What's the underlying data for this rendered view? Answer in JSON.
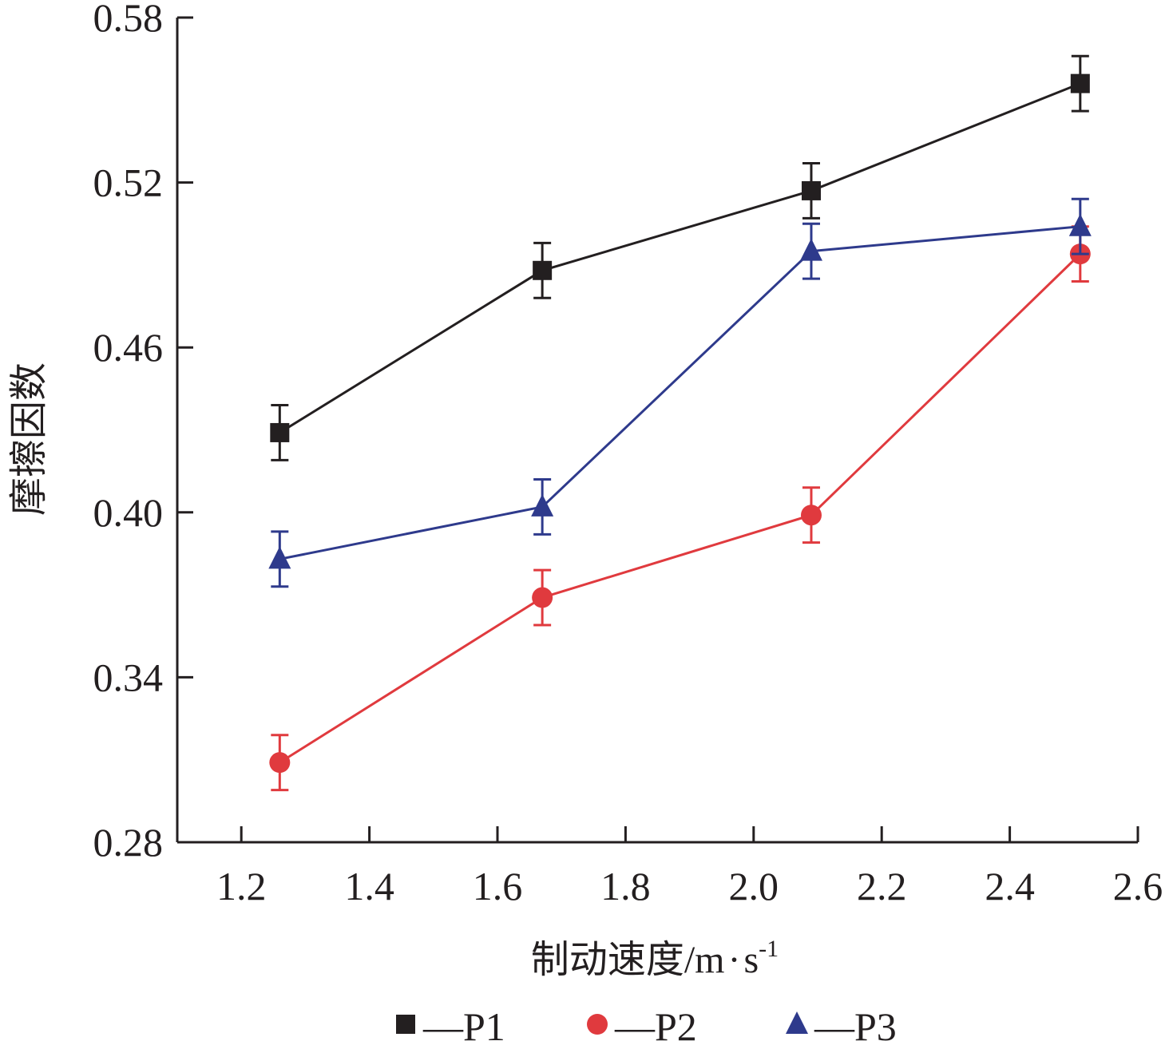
{
  "chart_data": {
    "type": "line",
    "title": "",
    "xlabel": "制动速度/m·s⁻¹",
    "xlabel_main": "制动速度/m",
    "xlabel_dot": "·",
    "xlabel_s": "s",
    "xlabel_sup": "-1",
    "ylabel": "摩擦因数",
    "xlim": [
      1.1,
      2.6
    ],
    "ylim": [
      0.28,
      0.58
    ],
    "xticks": [
      1.2,
      1.4,
      1.6,
      1.8,
      2.0,
      2.2,
      2.4,
      2.6
    ],
    "xtick_labels": [
      "1.2",
      "1.4",
      "1.6",
      "1.8",
      "2.0",
      "2.2",
      "2.4",
      "2.6"
    ],
    "yticks": [
      0.28,
      0.34,
      0.4,
      0.46,
      0.52,
      0.58
    ],
    "ytick_labels": [
      "0.28",
      "0.34",
      "0.40",
      "0.46",
      "0.52",
      "0.58"
    ],
    "grid": false,
    "legend_position": "bottom",
    "x": [
      1.26,
      1.67,
      2.09,
      2.51
    ],
    "series": [
      {
        "name": "P1",
        "marker": "square",
        "color": "#231f20",
        "y": [
          0.429,
          0.488,
          0.517,
          0.556
        ],
        "err": [
          0.01,
          0.01,
          0.01,
          0.01
        ]
      },
      {
        "name": "P2",
        "marker": "circle",
        "color": "#e03a3e",
        "y": [
          0.309,
          0.369,
          0.399,
          0.494
        ],
        "err": [
          0.01,
          0.01,
          0.01,
          0.01
        ]
      },
      {
        "name": "P3",
        "marker": "triangle",
        "color": "#2e3a8c",
        "y": [
          0.383,
          0.402,
          0.495,
          0.504
        ],
        "err": [
          0.01,
          0.01,
          0.01,
          0.01
        ]
      }
    ],
    "legend": [
      {
        "label": "—P1"
      },
      {
        "label": "—P2"
      },
      {
        "label": "—P3"
      }
    ]
  }
}
